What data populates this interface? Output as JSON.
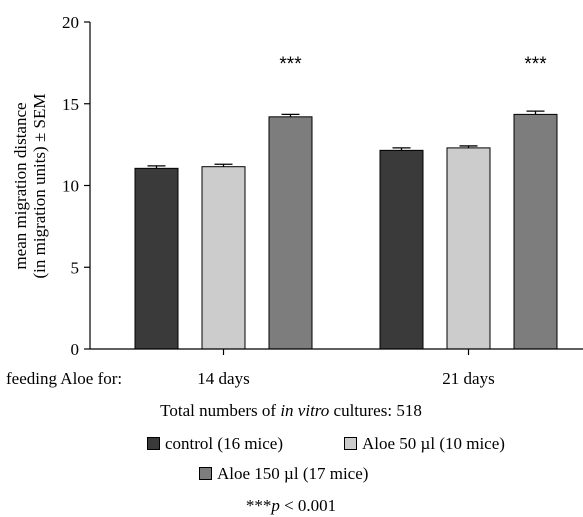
{
  "chart_data": {
    "type": "bar",
    "groups": [
      "14 days",
      "21 days"
    ],
    "group_prefix_label": "feeding Aloe for:",
    "ylabel_line1": "mean migration distance",
    "ylabel_line2": "(in migration units) ± SEM",
    "ylim": [
      0,
      20
    ],
    "yticks": [
      0,
      5,
      10,
      15,
      20
    ],
    "series": [
      {
        "name": "control (16 mice)",
        "color": "#3a3a3a",
        "values": [
          11.05,
          12.15
        ],
        "errors": [
          0.15,
          0.15
        ]
      },
      {
        "name": "Aloe 50 µl (10 mice)",
        "color": "#cccccc",
        "values": [
          11.15,
          12.3
        ],
        "errors": [
          0.15,
          0.12
        ]
      },
      {
        "name": "Aloe 150 µl (17 mice)",
        "color": "#7d7d7d",
        "values": [
          14.2,
          14.35
        ],
        "errors": [
          0.15,
          0.2
        ]
      }
    ],
    "annotations": [
      {
        "group": 0,
        "series": 2,
        "text": "***"
      },
      {
        "group": 1,
        "series": 2,
        "text": "***"
      }
    ],
    "grid": false,
    "legend_position": "bottom"
  },
  "footer": {
    "total_prefix": "Total numbers of ",
    "total_italic": "in vitro",
    "total_suffix": " cultures: 518",
    "pvalue_stars": "***",
    "pvalue_p": "p",
    "pvalue_rest": " < 0.001"
  }
}
